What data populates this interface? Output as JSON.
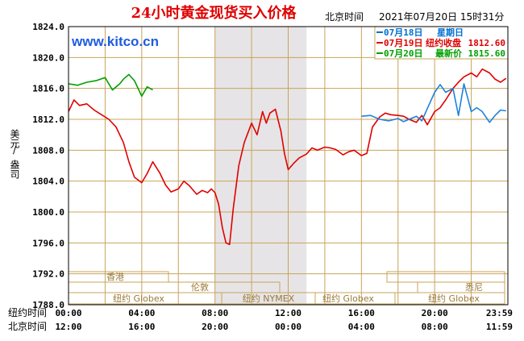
{
  "header": {
    "title": "24小时黄金现货买入价格",
    "time_label": "北京时间",
    "datetime": "2021年07月20日 15时31分",
    "watermark": "www.kitco.cn"
  },
  "legend": [
    {
      "date": "07月18日",
      "label": "星期日",
      "value": "",
      "color": "#0070d0"
    },
    {
      "date": "07月19日",
      "label": "纽约收盘",
      "value": "1812.60",
      "color": "#e00000"
    },
    {
      "date": "07月20日",
      "label": "最新价",
      "value": "1815.60",
      "color": "#00a000"
    }
  ],
  "axis": {
    "ylabel_1": "美元",
    "ylabel_2": "/",
    "ylabel_3": "盎司",
    "row1_label": "纽约时间",
    "row2_label": "北京时间"
  },
  "sessions": {
    "hongkong": "香港",
    "london": "伦敦",
    "sydney": "悉尼",
    "globex_1": "纽约 Globex",
    "nymex": "纽约 NYMEX",
    "globex_2": "纽约 Globex",
    "globex_3": "纽约 Globex"
  },
  "colors": {
    "grid": "#c8a45a",
    "frame": "#000000",
    "shade": "#e6e4e6",
    "red": "#e00000",
    "blue": "#1e82dc",
    "green": "#00a000",
    "title": "#e00000"
  },
  "chart_data": {
    "type": "line",
    "ylim": [
      1788,
      1824
    ],
    "xlim": [
      0,
      24
    ],
    "y_ticks": [
      "1824.0",
      "1820.0",
      "1816.0",
      "1812.0",
      "1808.0",
      "1804.0",
      "1800.0",
      "1796.0",
      "1792.0",
      "1788.0"
    ],
    "x_ticks_ny": [
      "00:00",
      "04:00",
      "08:00",
      "12:00",
      "16:00",
      "20:00",
      "23:59"
    ],
    "x_ticks_bj": [
      "12:00",
      "16:00",
      "20:00",
      "00:00",
      "04:00",
      "08:00",
      "11:59"
    ],
    "nymex_session": [
      8,
      13
    ],
    "series": [
      {
        "name": "07月19日",
        "color": "#e00000",
        "x": [
          0.0,
          0.3,
          0.6,
          1.0,
          1.4,
          1.8,
          2.2,
          2.6,
          3.0,
          3.3,
          3.6,
          4.0,
          4.3,
          4.6,
          5.0,
          5.3,
          5.6,
          6.0,
          6.3,
          6.6,
          7.0,
          7.3,
          7.6,
          7.8,
          8.0,
          8.2,
          8.4,
          8.6,
          8.8,
          9.0,
          9.3,
          9.6,
          10.0,
          10.3,
          10.6,
          10.8,
          11.0,
          11.3,
          11.6,
          11.8,
          12.0,
          12.3,
          12.6,
          13.0,
          13.3,
          13.6,
          14.0,
          14.3,
          14.6,
          15.0,
          15.3,
          15.6,
          16.0,
          16.3,
          16.6,
          17.0,
          17.3,
          17.6,
          18.0,
          18.3,
          18.6,
          19.0,
          19.3,
          19.6,
          20.0,
          20.3,
          20.6,
          21.0,
          21.3,
          21.6,
          22.0,
          22.3,
          22.6,
          23.0,
          23.3,
          23.6,
          23.9
        ],
        "values": [
          1813.0,
          1814.5,
          1813.8,
          1814.0,
          1813.2,
          1812.6,
          1812.0,
          1811.0,
          1809.0,
          1806.5,
          1804.5,
          1803.8,
          1805.0,
          1806.5,
          1805.0,
          1803.5,
          1802.6,
          1803.0,
          1804.0,
          1803.4,
          1802.3,
          1802.8,
          1802.5,
          1803.0,
          1802.5,
          1801.0,
          1798.0,
          1796.0,
          1795.8,
          1800.5,
          1806.0,
          1809.0,
          1811.5,
          1810.0,
          1813.0,
          1811.5,
          1812.8,
          1813.3,
          1810.5,
          1807.5,
          1805.5,
          1806.3,
          1807.0,
          1807.5,
          1808.3,
          1808.0,
          1808.4,
          1808.3,
          1808.1,
          1807.4,
          1807.8,
          1808.0,
          1807.3,
          1807.6,
          1811.0,
          1812.3,
          1812.8,
          1812.6,
          1812.5,
          1812.4,
          1812.0,
          1811.6,
          1812.5,
          1811.3,
          1813.0,
          1813.5,
          1814.5,
          1816.0,
          1816.8,
          1817.5,
          1818.0,
          1817.5,
          1818.5,
          1818.0,
          1817.2,
          1816.8,
          1817.3
        ]
      },
      {
        "name": "07月18日",
        "color": "#1e82dc",
        "x": [
          16.0,
          16.5,
          17.0,
          17.5,
          18.0,
          18.3,
          18.6,
          19.0,
          19.3,
          19.6,
          20.0,
          20.3,
          20.6,
          21.0,
          21.3,
          21.6,
          22.0,
          22.3,
          22.6,
          23.0,
          23.3,
          23.6,
          23.9
        ],
        "values": [
          1812.4,
          1812.5,
          1812.0,
          1811.8,
          1812.1,
          1811.7,
          1812.0,
          1812.4,
          1811.8,
          1813.4,
          1815.5,
          1816.5,
          1815.5,
          1816.0,
          1812.5,
          1816.6,
          1813.0,
          1813.5,
          1813.0,
          1811.6,
          1812.5,
          1813.2,
          1813.1
        ]
      },
      {
        "name": "07月20日",
        "color": "#00a000",
        "x": [
          0.0,
          0.5,
          1.0,
          1.5,
          2.0,
          2.4,
          2.8,
          3.0,
          3.3,
          3.6,
          4.0,
          4.3,
          4.6
        ],
        "values": [
          1816.6,
          1816.4,
          1816.8,
          1817.0,
          1817.4,
          1815.8,
          1816.6,
          1817.2,
          1817.8,
          1817.0,
          1815.0,
          1816.2,
          1815.8
        ]
      }
    ]
  }
}
